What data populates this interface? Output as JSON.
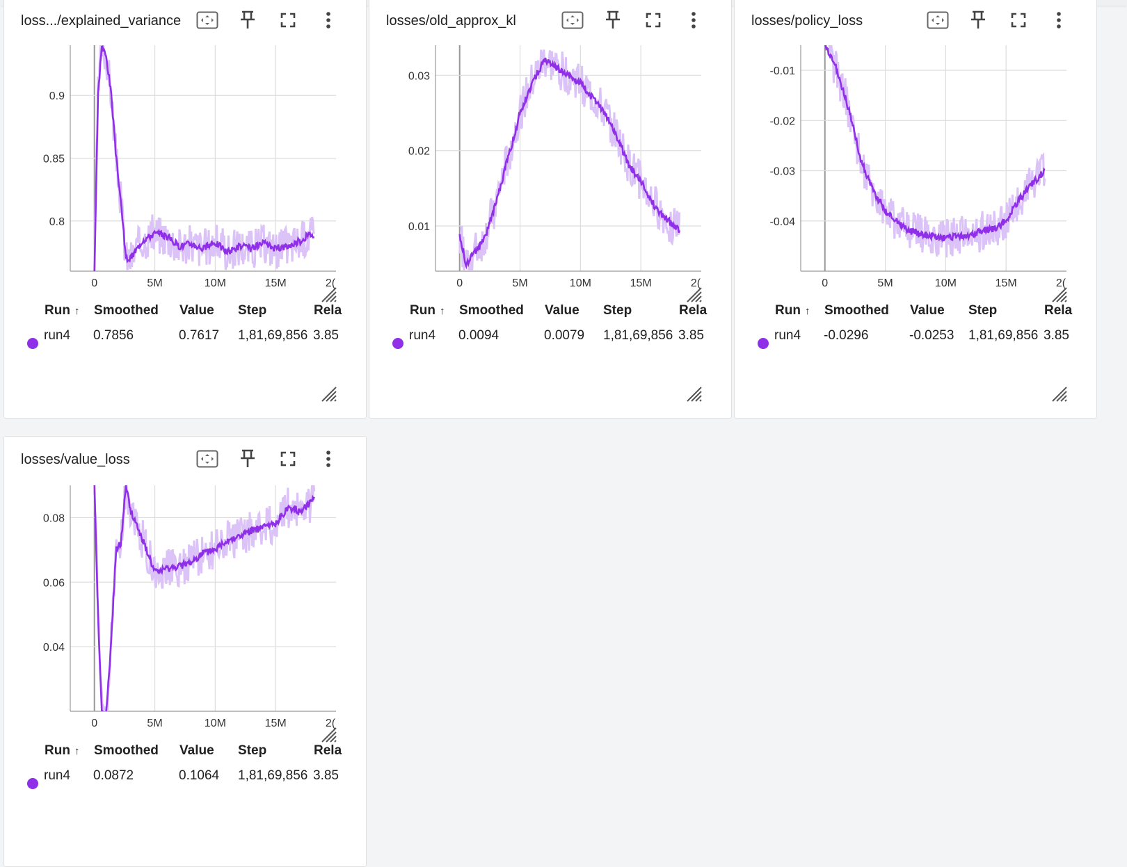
{
  "accent_color": "#8f2fe8",
  "accent_light": "#dcc3f7",
  "table_headers": {
    "run": "Run",
    "sort_icon": "↑",
    "smoothed": "Smoothed",
    "value": "Value",
    "step": "Step",
    "relative": "Rela"
  },
  "x_ticks": [
    "0",
    "5M",
    "10M",
    "15M",
    "2("
  ],
  "cards": [
    {
      "title": "loss.../explained_variance",
      "row": {
        "run": "run4",
        "smoothed": "0.7856",
        "value": "0.7617",
        "step": "1,81,69,856",
        "relative": "3.85"
      },
      "y_ticks": [
        "0.9",
        "0.85",
        "0.8"
      ]
    },
    {
      "title": "losses/old_approx_kl",
      "row": {
        "run": "run4",
        "smoothed": "0.0094",
        "value": "0.0079",
        "step": "1,81,69,856",
        "relative": "3.85"
      },
      "y_ticks": [
        "0.03",
        "0.02",
        "0.01"
      ]
    },
    {
      "title": "losses/policy_loss",
      "row": {
        "run": "run4",
        "smoothed": "-0.0296",
        "value": "-0.0253",
        "step": "1,81,69,856",
        "relative": "3.85"
      },
      "y_ticks": [
        "-0.01",
        "-0.02",
        "-0.03",
        "-0.04"
      ]
    },
    {
      "title": "losses/value_loss",
      "row": {
        "run": "run4",
        "smoothed": "0.0872",
        "value": "0.1064",
        "step": "1,81,69,856",
        "relative": "3.85"
      },
      "y_ticks": [
        "0.08",
        "0.06",
        "0.04"
      ]
    }
  ],
  "chart_data": [
    {
      "type": "line",
      "title": "loss.../explained_variance",
      "xlim": [
        -2000000,
        20000000
      ],
      "ylim": [
        0.76,
        0.94
      ],
      "series": [
        {
          "name": "run4",
          "x": [
            0,
            300000,
            600000,
            1000000,
            1400000,
            1800000,
            2200000,
            2600000,
            3000000,
            4000000,
            5000000,
            6000000,
            7000000,
            8000000,
            9000000,
            10000000,
            11000000,
            12000000,
            13000000,
            14000000,
            15000000,
            16000000,
            17000000,
            18000000,
            18200000
          ],
          "y": [
            0.76,
            0.9,
            0.94,
            0.93,
            0.9,
            0.85,
            0.815,
            0.77,
            0.77,
            0.785,
            0.79,
            0.788,
            0.78,
            0.782,
            0.778,
            0.783,
            0.775,
            0.78,
            0.778,
            0.782,
            0.778,
            0.78,
            0.784,
            0.79,
            0.7856
          ]
        }
      ]
    },
    {
      "type": "line",
      "title": "losses/old_approx_kl",
      "xlim": [
        -2000000,
        20000000
      ],
      "ylim": [
        0.004,
        0.034
      ],
      "series": [
        {
          "name": "run4",
          "x": [
            0,
            500000,
            1000000,
            2000000,
            3000000,
            4000000,
            5000000,
            6000000,
            7000000,
            8000000,
            9000000,
            10000000,
            11000000,
            12000000,
            13000000,
            14000000,
            15000000,
            16000000,
            17000000,
            18000000,
            18200000
          ],
          "y": [
            0.009,
            0.005,
            0.006,
            0.008,
            0.013,
            0.019,
            0.025,
            0.029,
            0.032,
            0.031,
            0.03,
            0.029,
            0.027,
            0.025,
            0.022,
            0.018,
            0.016,
            0.013,
            0.011,
            0.0098,
            0.0094
          ]
        }
      ]
    },
    {
      "type": "line",
      "title": "losses/policy_loss",
      "xlim": [
        -2000000,
        20000000
      ],
      "ylim": [
        -0.05,
        -0.005
      ],
      "series": [
        {
          "name": "run4",
          "x": [
            0,
            1000000,
            2000000,
            3000000,
            4000000,
            5000000,
            6000000,
            7000000,
            8000000,
            9000000,
            10000000,
            11000000,
            12000000,
            13000000,
            14000000,
            15000000,
            16000000,
            17000000,
            18000000,
            18200000
          ],
          "y": [
            -0.005,
            -0.01,
            -0.018,
            -0.028,
            -0.034,
            -0.038,
            -0.04,
            -0.042,
            -0.0425,
            -0.043,
            -0.0435,
            -0.043,
            -0.043,
            -0.042,
            -0.0415,
            -0.04,
            -0.036,
            -0.033,
            -0.0305,
            -0.0296
          ]
        }
      ]
    },
    {
      "type": "line",
      "title": "losses/value_loss",
      "xlim": [
        -2000000,
        20000000
      ],
      "ylim": [
        0.02,
        0.09
      ],
      "series": [
        {
          "name": "run4",
          "x": [
            0,
            300000,
            600000,
            1000000,
            1400000,
            1800000,
            2200000,
            2600000,
            3000000,
            4000000,
            5000000,
            6000000,
            7000000,
            8000000,
            9000000,
            10000000,
            11000000,
            12000000,
            13000000,
            14000000,
            15000000,
            16000000,
            17000000,
            18000000,
            18200000
          ],
          "y": [
            0.09,
            0.05,
            0.02,
            0.02,
            0.042,
            0.07,
            0.072,
            0.09,
            0.082,
            0.073,
            0.063,
            0.064,
            0.065,
            0.066,
            0.069,
            0.07,
            0.073,
            0.074,
            0.076,
            0.077,
            0.078,
            0.083,
            0.082,
            0.085,
            0.0872
          ]
        }
      ]
    }
  ]
}
